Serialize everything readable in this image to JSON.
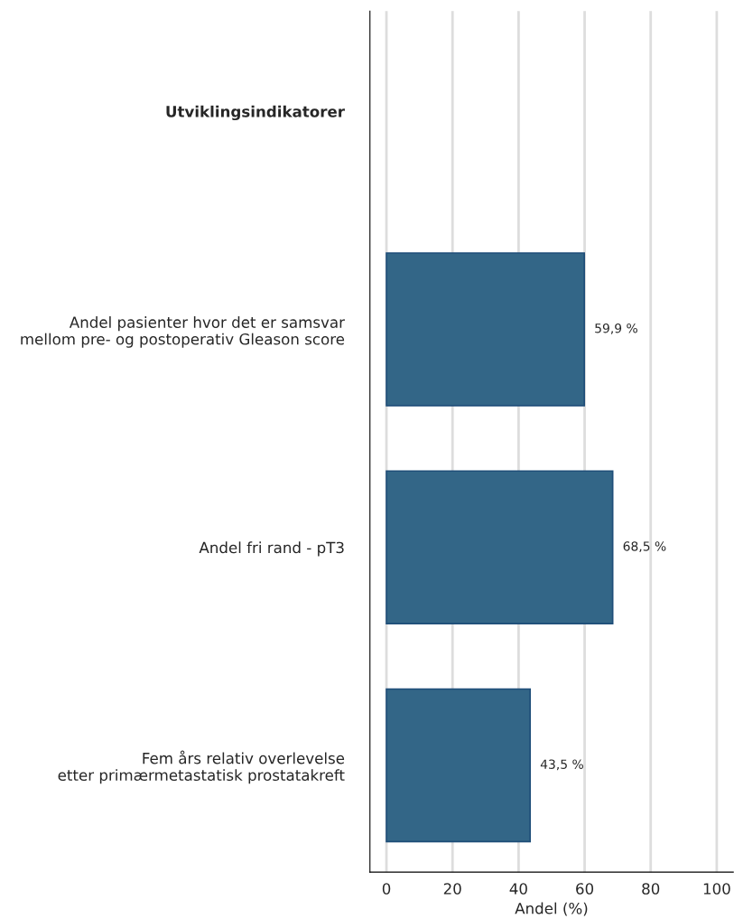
{
  "chart_data": {
    "type": "bar",
    "orientation": "horizontal",
    "xlabel": "Andel (%)",
    "categories": [
      "Utviklingsindikatorer",
      "Andel pasienter hvor det er samsvar\nmellom pre- og postoperativ Gleason score",
      "Andel fri rand - pT3",
      "Fem års relativ overlevelse\netter primærmetastatisk prostatakreft"
    ],
    "values": [
      null,
      59.9,
      68.5,
      43.5
    ],
    "value_labels": [
      null,
      "59,9 %",
      "68,5 %",
      "43,5 %"
    ],
    "color": "#336687",
    "xlim": [
      -5,
      105
    ],
    "xticks": [
      0,
      20,
      40,
      60,
      80,
      100
    ],
    "grid": "x",
    "legend": false
  }
}
